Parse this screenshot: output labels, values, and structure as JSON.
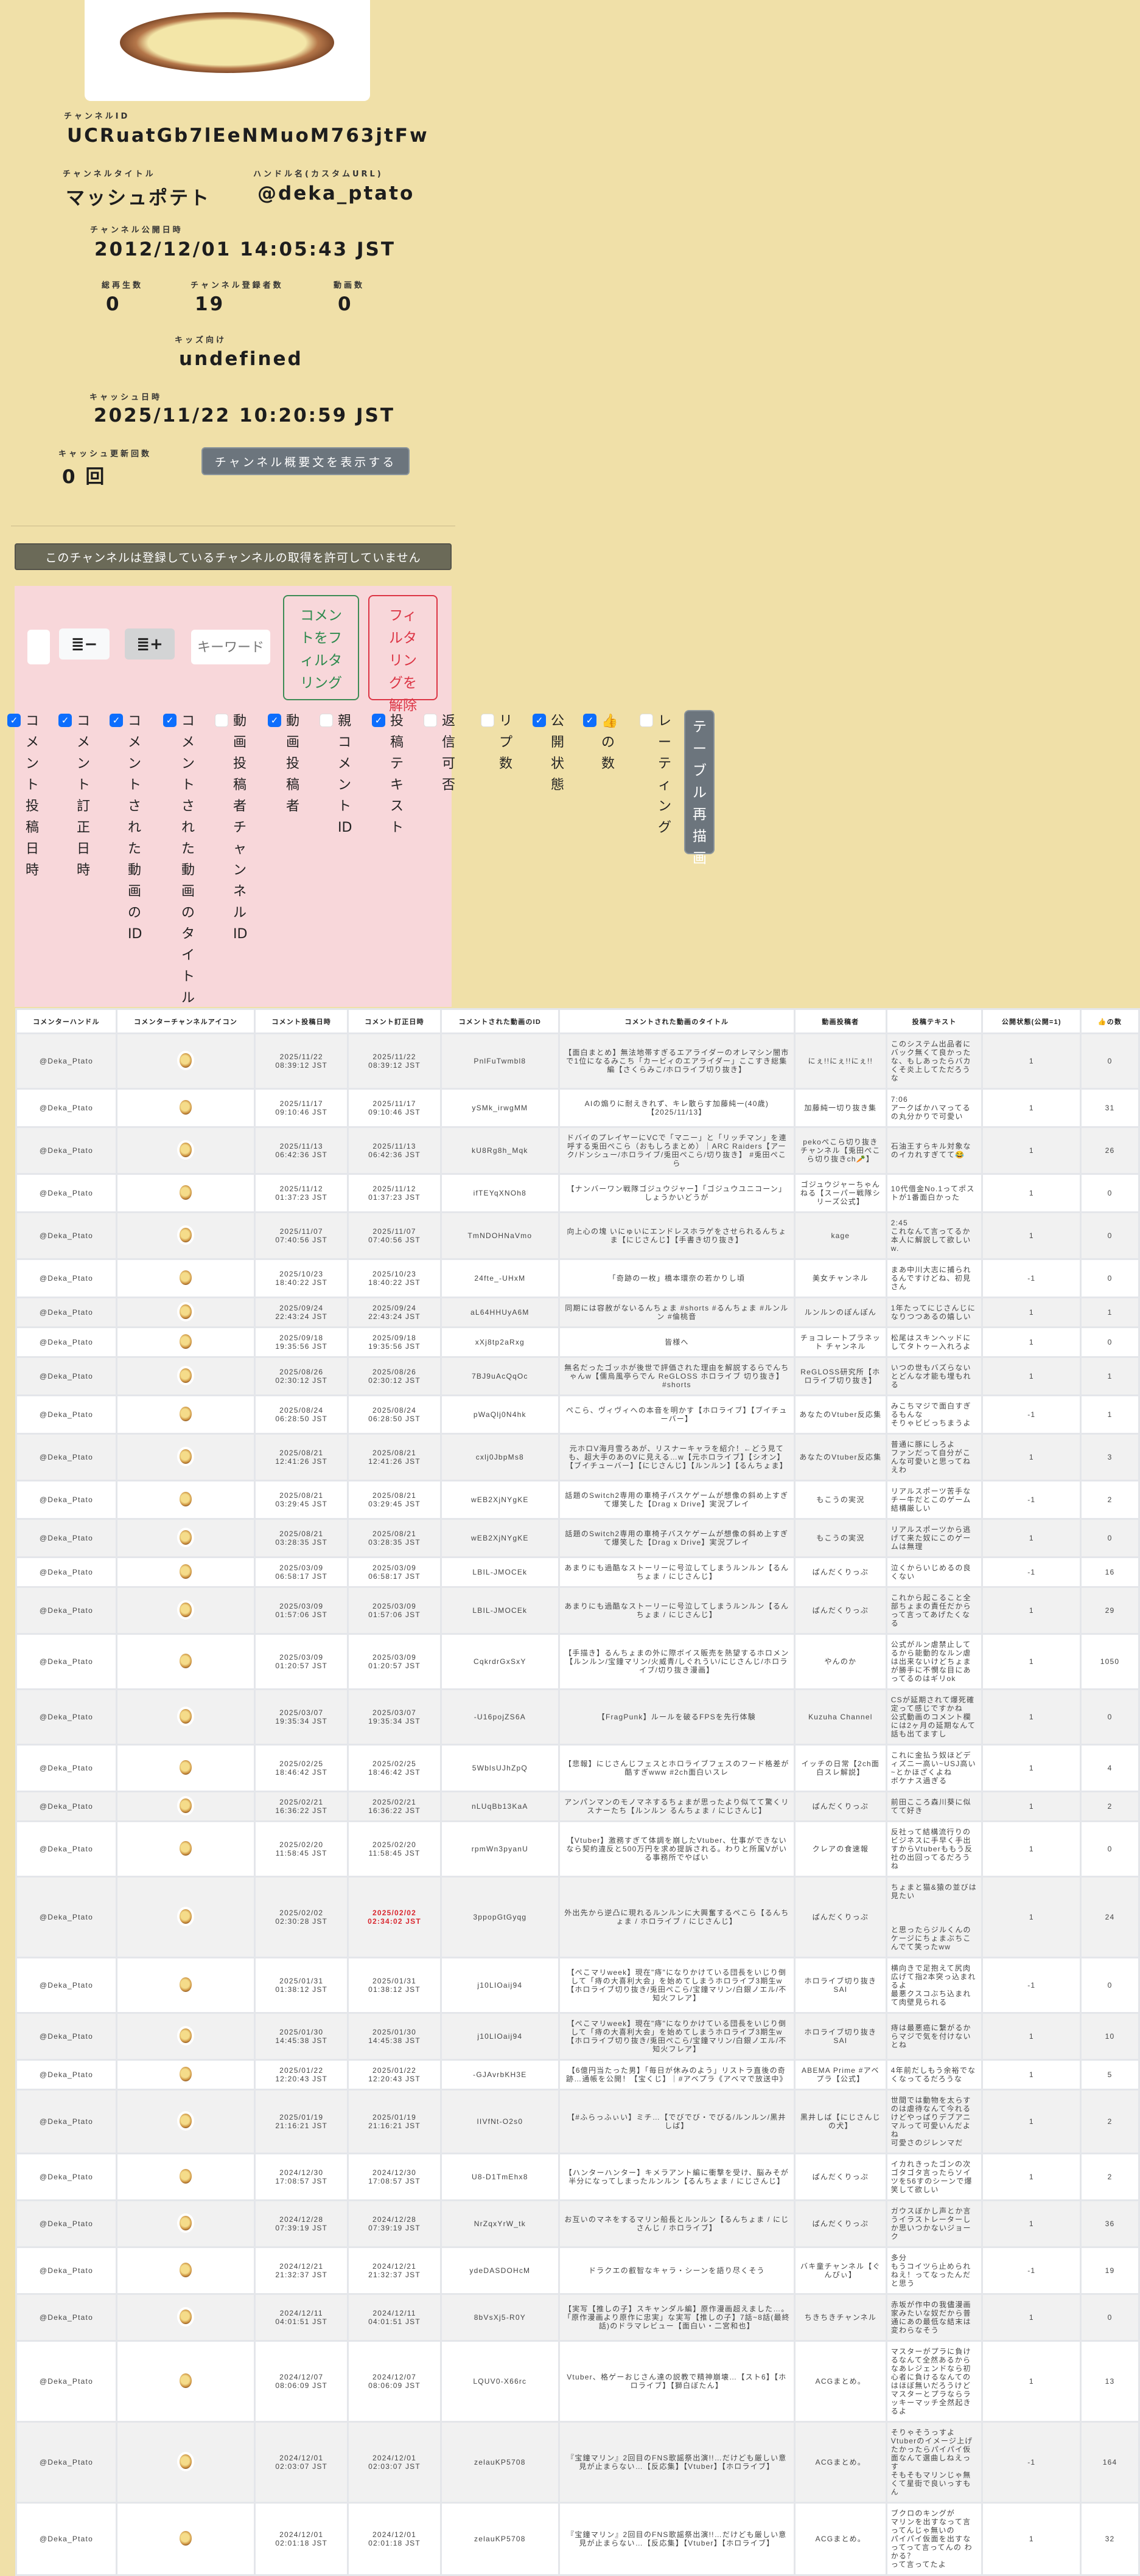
{
  "channel": {
    "id_label": "チャンネルID",
    "id": "UCRuatGb7lEeNMuoM763jtFw",
    "title_label": "チャンネルタイトル",
    "title": "マッシュポテト",
    "handle_label": "ハンドル名(カスタムURL)",
    "handle": "@deka_ptato",
    "published_label": "チャンネル公開日時",
    "published": "2012/12/01 14:05:43 JST",
    "views_label": "総再生数",
    "views": "0",
    "subs_label": "チャンネル登録者数",
    "subs": "19",
    "videos_label": "動画数",
    "videos": "0",
    "kids_label": "キッズ向け",
    "kids": "undefined",
    "cache_label": "キャッシュ日時",
    "cache": "2025/11/22 10:20:59 JST",
    "cache_count_label": "キャッシュ更新回数",
    "cache_count": "0 回",
    "show_desc_button": "チャンネル概要文を表示する"
  },
  "banner": "このチャンネルは登録しているチャンネルの取得を許可していません",
  "controls": {
    "keyword_placeholder": "キーワード",
    "filter_button": "コメントをフィルタリング",
    "clear_button": "フィルタリングを解除",
    "redraw_button": "テーブル再描画"
  },
  "columns": [
    {
      "label": "コメント投稿日時",
      "checked": true
    },
    {
      "label": "コメント訂正日時",
      "checked": true
    },
    {
      "label": "コメントされた動画のID",
      "checked": true
    },
    {
      "label": "コメントされた動画のタイトル",
      "checked": true
    },
    {
      "label": "動画投稿者チャンネルID",
      "checked": false
    },
    {
      "label": "動画投稿者",
      "checked": true
    },
    {
      "label": "親コメントID",
      "checked": false
    },
    {
      "label": "投稿テキスト",
      "checked": true
    },
    {
      "label": "返信可否",
      "checked": false
    },
    {
      "label": "リプ数",
      "checked": false
    },
    {
      "label": "公開状態",
      "checked": true
    },
    {
      "label": "👍の数",
      "checked": true
    },
    {
      "label": "レーティング",
      "checked": false
    }
  ],
  "table": {
    "headers": [
      "コメンターハンドル",
      "コメンターチャンネルアイコン",
      "コメント投稿日時",
      "コメント訂正日時",
      "コメントされた動画のID",
      "コメントされた動画のタイトル",
      "動画投稿者",
      "投稿テキスト",
      "公開状態(公開=1)",
      "👍の数"
    ],
    "rows": [
      [
        "@Deka_Ptato",
        "2025/11/22 08:39:12 JST",
        "2025/11/22 08:39:12 JST",
        "PnlFuTwmbl8",
        "【面白まとめ】無法地帯すぎるエアライダーのオレマシン闇市で1位になるみこち「カービィのエアライダー」ここすき総集編【さくらみこ/ホロライブ切り抜き】",
        "にぇ!!にぇ!!にぇ!!",
        "このシステム出品者にバック無くて良かったな、もしあったらバカくそ炎上してただろうな",
        "1",
        "0"
      ],
      [
        "@Deka_Ptato",
        "2025/11/17 09:10:46 JST",
        "2025/11/17 09:10:46 JST",
        "ySMk_irwgMM",
        "AIの煽りに耐えきれず、キレ散らす加藤純一(40歳)【2025/11/13】",
        "加藤純一切り抜き集",
        "7:06\nアークばかハマってるの丸分かりで可愛い",
        "1",
        "31"
      ],
      [
        "@Deka_Ptato",
        "2025/11/13 06:42:36 JST",
        "2025/11/13 06:42:36 JST",
        "kU8Rg8h_Mqk",
        "ドバイのプレイヤーにVCで「マニー」と「リッチマン」を連呼する兎田ぺこら（おもしろまとめ）｜ARC Raiders【アーク/ドンシュー/ホロライブ/兎田ぺこら/切り抜き】 #兎田ぺこら",
        "pekoぺこら切り抜きチャンネル【兎田ぺこら切り抜きch🥕】",
        "石油王すらキル対象なのイカれすぎてて😂",
        "1",
        "26"
      ],
      [
        "@Deka_Ptato",
        "2025/11/12 01:37:23 JST",
        "2025/11/12 01:37:23 JST",
        "ifTEYqXNOh8",
        "【ナンバーワン戦隊ゴジュウジャー】「ゴジュウユニコーン」しょうかいどうが",
        "ゴジュウジャーちゃんねる【スーパー戦隊シリーズ公式】",
        "10代借金No.1ってポストが1番面白かった",
        "1",
        "0"
      ],
      [
        "@Deka_Ptato",
        "2025/11/07 07:40:56 JST",
        "2025/11/07 07:40:56 JST",
        "TmNDOHNaVmo",
        "向上心の塊 いにゅいにエンドレスホラゲをさせられるんちょま【にじさんじ】【手書き切り抜き】",
        "kage",
        "2:45\nこれなんて言ってるか本人に解説して欲しいw.",
        "1",
        "0"
      ],
      [
        "@Deka_Ptato",
        "2025/10/23 18:40:22 JST",
        "2025/10/23 18:40:22 JST",
        "24fte_-UHxM",
        "「奇跡の一枚」橋本環奈の若かりし頃",
        "美女チャンネル",
        "まあ中川大志に捕られるんですけどね、初見さん",
        "-1",
        "0"
      ],
      [
        "@Deka_Ptato",
        "2025/09/24 22:43:24 JST",
        "2025/09/24 22:43:24 JST",
        "aL64HHUyA6M",
        "同期には容赦がないるんちょま #shorts #るんちょま #ルンルン #倫桃音",
        "ルンルンのぽんぽん",
        "1年たってにじさんじになりつつあるの嬉しい",
        "1",
        "1"
      ],
      [
        "@Deka_Ptato",
        "2025/09/18 19:35:56 JST",
        "2025/09/18 19:35:56 JST",
        "xXj8tp2aRxg",
        "皆様へ",
        "チョコレートプラネット チャンネル",
        "松尾はスキンヘッドにしてタトゥー入れろよ",
        "1",
        "0"
      ],
      [
        "@Deka_Ptato",
        "2025/08/26 02:30:12 JST",
        "2025/08/26 02:30:12 JST",
        "7BJ9uAcQqOc",
        "無名だったゴッホが後世で評価された理由を解説するらでんちゃんw【儒烏風亭らでん ReGLOSS ホロライブ 切り抜き】 #shorts",
        "ReGLOSS研究所【ホロライブ切り抜き】",
        "いつの世もバズらないとどんな才能も埋もれる",
        "1",
        "1"
      ],
      [
        "@Deka_Ptato",
        "2025/08/24 06:28:50 JST",
        "2025/08/24 06:28:50 JST",
        "pWaQlj0N4hk",
        "ぺこら、ヴィヴィへの本音を明かす【ホロライブ】【ブイチューバー】",
        "あなたのVtuber反応集",
        "みこちマジで面白すぎるもんな\nそりゃビビっちまうよ",
        "-1",
        "1"
      ],
      [
        "@Deka_Ptato",
        "2025/08/21 12:41:26 JST",
        "2025/08/21 12:41:26 JST",
        "cxlj0JbpMs8",
        "元ホロV海月雪ろあが、リスナーキャラを紹介！←どう見ても、超大手のあのVに見える…w【元ホロライブ】【シオン】【ブイチューバー】【にじさんじ】【ルンルン】【るんちょま】",
        "あなたのVtuber反応集",
        "普通に豚にしろよ\nファンだって自分がこんな可愛いと思ってねえわ",
        "1",
        "3"
      ],
      [
        "@Deka_Ptato",
        "2025/08/21 03:29:45 JST",
        "2025/08/21 03:29:45 JST",
        "wEB2XjNYgKE",
        "話題のSwitch2専用の車椅子バスケゲームが想像の斜め上すぎて爆笑した【Drag x Drive】実況プレイ",
        "もこうの実況",
        "リアルスポーツ苦手なチー牛だとこのゲーム結構厳しい",
        "-1",
        "2"
      ],
      [
        "@Deka_Ptato",
        "2025/08/21 03:28:35 JST",
        "2025/08/21 03:28:35 JST",
        "wEB2XjNYgKE",
        "話題のSwitch2専用の車椅子バスケゲームが想像の斜め上すぎて爆笑した【Drag x Drive】実況プレイ",
        "もこうの実況",
        "リアルスポーツから逃げて来た奴にこのゲームは無理",
        "1",
        "0"
      ],
      [
        "@Deka_Ptato",
        "2025/03/09 06:58:17 JST",
        "2025/03/09 06:58:17 JST",
        "LBIL-JMOCEk",
        "あまりにも過酷なストーリーに号泣してしまうルンルン【るんちょま / にじさんじ】",
        "ぱんだくりっぷ",
        "泣くからいじめるの良くない",
        "-1",
        "16"
      ],
      [
        "@Deka_Ptato",
        "2025/03/09 01:57:06 JST",
        "2025/03/09 01:57:06 JST",
        "LBIL-JMOCEk",
        "あまりにも過酷なストーリーに号泣してしまうルンルン【るんちょま / にじさんじ】",
        "ぱんだくりっぷ",
        "これから起こること全部ちょまの責任だからって言ってあげたくなる",
        "1",
        "29"
      ],
      [
        "@Deka_Ptato",
        "2025/03/09 01:20:57 JST",
        "2025/03/09 01:20:57 JST",
        "CqkrdrGxSxY",
        "【手描き】るんちょまの外に際ボイス販売を熱望するホロメン【ルンルン/宝鐘マリン/火威青/しぐれうい/にじさんじ/ホロライブ/切り抜き漫画】",
        "やんのか",
        "公式がルン虐禁止してるから能動的なルン虐は出来ないけどちょまが勝手に不憫な目にあってるのはギリok",
        "1",
        "1050"
      ],
      [
        "@Deka_Ptato",
        "2025/03/07 19:35:34 JST",
        "2025/03/07 19:35:34 JST",
        "-U16pojZS6A",
        "【FragPunk】ルールを破るFPSを先行体験",
        "Kuzuha Channel",
        "CSが延期されて爆死確定って感じですかね\n公式動画のコメント欄には2ヶ月の延期なんて話も出てますし",
        "1",
        "0"
      ],
      [
        "@Deka_Ptato",
        "2025/02/25 18:46:42 JST",
        "2025/02/25 18:46:42 JST",
        "5WblsUJhZpQ",
        "【悲報】にじさんじフェスとホロライブフェスのフード格差が酷すぎwww #2ch面白いスレ",
        "イッチの日常【2ch面白スレ解説】",
        "これに金払う奴ほどディズニー高い~USJ高い~とかほざくよね\nボケナス過ぎる",
        "1",
        "4"
      ],
      [
        "@Deka_Ptato",
        "2025/02/21 16:36:22 JST",
        "2025/02/21 16:36:22 JST",
        "nLUqBb13KaA",
        "アンパンマンのモノマネするちょまが思ったより似てて驚くリスナーたち【ルンルン るんちょま / にじさんじ】",
        "ぱんだくりっぷ",
        "前田こころ森川葵に似てて好き",
        "1",
        "2"
      ],
      [
        "@Deka_Ptato",
        "2025/02/20 11:58:45 JST",
        "2025/02/20 11:58:45 JST",
        "rpmWn3pyanU",
        "【Vtuber】激務すぎて体調を崩したVtuber、仕事ができないなら契約違反と500万円を求め提訴される。わりと所属Vがいる事務所でやばい",
        "クレアの食速報",
        "反社って結構流行りのビジネスに手早く手出すからVtuberももう反社の出回ってるだろうね",
        "1",
        "0"
      ],
      [
        "@Deka_Ptato",
        "2025/02/02 02:30:28 JST",
        "2025/02/02 02:34:02 JST",
        "3ppopGtGyqg",
        "外出先から逆凸に現れるルンルンに大興奮するぺこら【るんちょま / ホロライブ / にじさんじ】",
        "ぱんだくりっぷ",
        "ちょまと猫&猿の並びは見たい\n\n\n\nと思ったらジルくんのケージにちょまぶちこんでて笑ったww",
        "1",
        "24"
      ],
      [
        "@Deka_Ptato",
        "2025/01/31 01:38:12 JST",
        "2025/01/31 01:38:12 JST",
        "j10LIOaij94",
        "【ぺこマリweek】現在\"痔\"になりかけている団長をいじり倒して「痔の大喜利大会」を始めてしまうホロライブ3期生w【ホロライブ切り抜き/兎田ぺこら/宝鐘マリン/白銀ノエル/不知火フレア】",
        "ホロライブ切り抜きSAI",
        "横向きで足抱えて尻肉広げて指2本突っ込まれるよ\n最悪クスコぶち込まれて肉壁見られる",
        "-1",
        "0"
      ],
      [
        "@Deka_Ptato",
        "2025/01/30 14:45:38 JST",
        "2025/01/30 14:45:38 JST",
        "j10LIOaij94",
        "【ぺこマリweek】現在\"痔\"になりかけている団長をいじり倒して「痔の大喜利大会」を始めてしまうホロライブ3期生w【ホロライブ切り抜き/兎田ぺこら/宝鐘マリン/白銀ノエル/不知火フレア】",
        "ホロライブ切り抜きSAI",
        "痔は最悪癌に繋がるからマジで気を付けないとね",
        "1",
        "10"
      ],
      [
        "@Deka_Ptato",
        "2025/01/22 12:20:43 JST",
        "2025/01/22 12:20:43 JST",
        "-GJAvrbKH3E",
        "【6億円当たった男】「毎日が休みのよう」リストラ直後の奇跡…通帳を公開！【宝くじ】｜#アベプラ《アベマで放送中》",
        "ABEMA Prime #アベプラ【公式】",
        "4年前だしもう余裕でなくなってるだろうな",
        "1",
        "5"
      ],
      [
        "@Deka_Ptato",
        "2025/01/19 21:16:21 JST",
        "2025/01/19 21:16:21 JST",
        "IIVfNt-O2s0",
        "【#ふらっふぃい】ミチ…【でびでび・でびる/ルンルン/黒井しば】",
        "黒井しば【にじさんじの犬】",
        "世間では動物を太らすのは虐待なんて今れるけどやっぱりデブアニマルって可愛いんだよね\n可愛さのジレンマだ",
        "1",
        "2"
      ],
      [
        "@Deka_Ptato",
        "2024/12/30 17:08:57 JST",
        "2024/12/30 17:08:57 JST",
        "U8-D1TmEhx8",
        "【ハンターハンター】キメラアント編に衝撃を受け、脳みそが半分になってしまったルンルン【るんちょま / にじさんじ】",
        "ぱんだくりっぷ",
        "イカれきったゴンの次ゴタゴタ言ったらソイツを56すのシーンで爆笑して欲しい",
        "1",
        "2"
      ],
      [
        "@Deka_Ptato",
        "2024/12/28 07:39:19 JST",
        "2024/12/28 07:39:19 JST",
        "NrZqxYrW_tk",
        "お互いのマネをするマリン船長とルンルン【るんちょま / にじさんじ / ホロライブ】",
        "ぱんだくりっぷ",
        "ガウスぼかし声とか言うイラストレーターしか思いつかないジョーク",
        "1",
        "36"
      ],
      [
        "@Deka_Ptato",
        "2024/12/21 21:32:37 JST",
        "2024/12/21 21:32:37 JST",
        "ydeDASDOHcM",
        "ドラクエの叡智なキャラ・シーンを語り尽くそう",
        "バキ童チャンネル【ぐんぴぃ】",
        "多分\nもうコイツら止められねえ！ってなったんだと思う",
        "-1",
        "19"
      ],
      [
        "@Deka_Ptato",
        "2024/12/11 04:01:51 JST",
        "2024/12/11 04:01:51 JST",
        "8bVsXj5-R0Y",
        "【実写【推しの子】スキャンダル編】原作漫画超えました…。「原作漫画より原作に忠実」な実写【推しの子】7話~8話(最終話)のドラマレビュー【面白い・二宮和也】",
        "ちきちきチャンネル",
        "赤坂が作中の我儘漫画家みたいな奴だから普通にあの最低な結末は変わらなそう",
        "1",
        "0"
      ],
      [
        "@Deka_Ptato",
        "2024/12/07 08:06:09 JST",
        "2024/12/07 08:06:09 JST",
        "LQUV0-X66rc",
        "Vtuber、格ゲーおじさん達の説教で精神崩壊…【スト6】【ホロライブ】【獅白ぼたん】",
        "ACGまとめ。",
        "マスターがプラに負けるなんて全然あるからなあレジェンドなら初心者に負けるなんてのはほぼ無いだろうけど\nマスターとプラならラッキーマッチ全然起きるよ",
        "1",
        "13"
      ],
      [
        "@Deka_Ptato",
        "2024/12/01 02:03:07 JST",
        "2024/12/01 02:03:07 JST",
        "zelauKP5708",
        "『宝鐘マリン』2回目のFNS歌謡祭出演!!…だけども厳しい意見が止まらない…【反応集】【Vtuber】【ホロライブ】",
        "ACGまとめ。",
        "そりゃそうっすよ\nVtuberのイメージ上げたかったらパイパイ仮面なんて選曲しねえっす\nそもそもマリンじゃ無くて星街で良いっすもん",
        "-1",
        "164"
      ],
      [
        "@Deka_Ptato",
        "2024/12/01 02:01:18 JST",
        "2024/12/01 02:01:18 JST",
        "zelauKP5708",
        "『宝鐘マリン』2回目のFNS歌謡祭出演!!…だけども厳しい意見が止まらない…【反応集】【Vtuber】【ホロライブ】",
        "ACGまとめ。",
        "ブクロのキングが\nマリンを出すなって言ってんじゃ無いの\nパイパイ仮面を出すなってって言ってんの わかる？\nって言ってたよ",
        "1",
        "32"
      ]
    ]
  }
}
